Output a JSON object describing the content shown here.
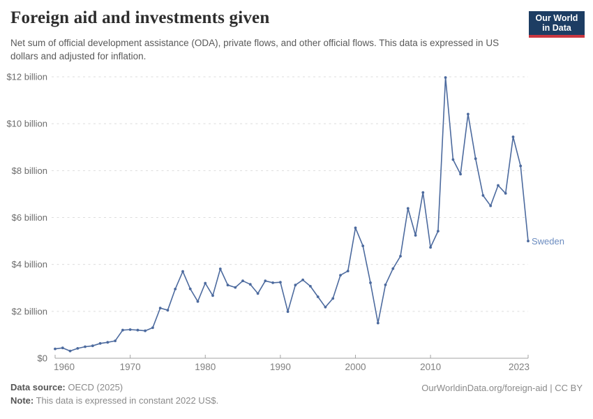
{
  "header": {
    "title": "Foreign aid and investments given",
    "subtitle": "Net sum of official development assistance (ODA), private flows, and other official flows. This data is expressed in US dollars and adjusted for inflation.",
    "logo": {
      "line1": "Our World",
      "line2": "in Data"
    }
  },
  "chart_data": {
    "type": "line",
    "title": "Foreign aid and investments given",
    "x": [
      1960,
      1961,
      1962,
      1963,
      1964,
      1965,
      1966,
      1967,
      1968,
      1969,
      1970,
      1971,
      1972,
      1973,
      1974,
      1975,
      1976,
      1977,
      1978,
      1979,
      1980,
      1981,
      1982,
      1983,
      1984,
      1985,
      1986,
      1987,
      1988,
      1989,
      1990,
      1991,
      1992,
      1993,
      1994,
      1995,
      1996,
      1997,
      1998,
      1999,
      2000,
      2001,
      2002,
      2003,
      2004,
      2005,
      2006,
      2007,
      2008,
      2009,
      2010,
      2011,
      2012,
      2013,
      2014,
      2015,
      2016,
      2017,
      2018,
      2019,
      2020,
      2021,
      2022,
      2023
    ],
    "series": [
      {
        "name": "Sweden",
        "unit": "billion US$",
        "values": [
          0.4,
          0.44,
          0.31,
          0.42,
          0.49,
          0.53,
          0.63,
          0.68,
          0.74,
          1.2,
          1.22,
          1.2,
          1.17,
          1.3,
          2.14,
          2.05,
          2.95,
          3.7,
          2.96,
          2.42,
          3.2,
          2.67,
          3.81,
          3.12,
          3.02,
          3.3,
          3.15,
          2.76,
          3.3,
          3.22,
          3.24,
          1.99,
          3.12,
          3.34,
          3.07,
          2.62,
          2.18,
          2.55,
          3.54,
          3.72,
          5.56,
          4.79,
          3.22,
          1.5,
          3.13,
          3.82,
          4.35,
          6.39,
          5.24,
          7.07,
          4.73,
          5.42,
          11.97,
          8.47,
          7.85,
          10.41,
          8.51,
          6.94,
          6.5,
          7.37,
          7.03,
          9.44,
          8.2,
          5.0
        ]
      }
    ],
    "x_ticks": [
      1960,
      1970,
      1980,
      1990,
      2000,
      2010,
      2023
    ],
    "y_ticks": [
      0,
      2,
      4,
      6,
      8,
      10,
      12
    ],
    "y_tick_labels": [
      "$0",
      "$2 billion",
      "$4 billion",
      "$6 billion",
      "$8 billion",
      "$10 billion",
      "$12 billion"
    ],
    "xlim": [
      1960,
      2023
    ],
    "ylim": [
      0,
      12
    ],
    "grid": "horizontal-dashed",
    "legend": "end-of-line-label"
  },
  "footer": {
    "source_label": "Data source:",
    "source_value": "OECD (2025)",
    "note_label": "Note:",
    "note_value": "This data is expressed in constant 2022 US$.",
    "credit": "OurWorldinData.org/foreign-aid | CC BY"
  },
  "colors": {
    "line": "#4c6a9e",
    "marker": "#4c6a9e",
    "entity_label": "#6b8cc0",
    "grid": "#dcdcdc",
    "axis": "#a3a3a3",
    "x_tick_text": "#808080",
    "y_tick_text": "#6c6c6c",
    "logo_navy": "#1d3d63",
    "logo_red": "#cb3740"
  }
}
